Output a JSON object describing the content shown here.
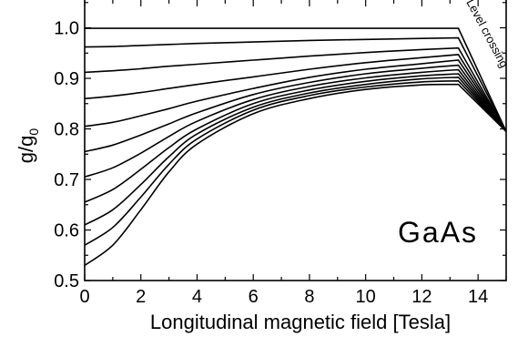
{
  "chart_data": {
    "type": "line",
    "xlabel": "Longitudinal magnetic field [Tesla]",
    "ylabel_main": "g/g",
    "ylabel_sub": "0",
    "xlim": [
      0,
      15
    ],
    "ylim": [
      0.5,
      1.05
    ],
    "x_ticks": [
      "0",
      "2",
      "4",
      "6",
      "8",
      "10",
      "12",
      "14"
    ],
    "y_ticks": [
      "0.5",
      "0.6",
      "0.7",
      "0.8",
      "0.9",
      "1.0"
    ],
    "grid": false,
    "legend": "none",
    "annotations": [
      "GaAs",
      "Level crossing"
    ],
    "series": [
      {
        "x": [
          0,
          1,
          2,
          3,
          4,
          6,
          8,
          10,
          12,
          13.3,
          15
        ],
        "y": [
          0.53,
          0.57,
          0.64,
          0.715,
          0.77,
          0.83,
          0.86,
          0.878,
          0.887,
          0.888,
          0.795
        ]
      },
      {
        "x": [
          0,
          1,
          2,
          3,
          4,
          6,
          8,
          10,
          12,
          13.3,
          15
        ],
        "y": [
          0.57,
          0.605,
          0.665,
          0.73,
          0.78,
          0.837,
          0.866,
          0.883,
          0.893,
          0.895,
          0.795
        ]
      },
      {
        "x": [
          0,
          1,
          2,
          3,
          4,
          6,
          8,
          10,
          12,
          13.3,
          15
        ],
        "y": [
          0.61,
          0.64,
          0.69,
          0.745,
          0.79,
          0.843,
          0.871,
          0.888,
          0.899,
          0.902,
          0.795
        ]
      },
      {
        "x": [
          0,
          1,
          2,
          3,
          4,
          6,
          8,
          10,
          12,
          13.3,
          15
        ],
        "y": [
          0.655,
          0.68,
          0.72,
          0.763,
          0.8,
          0.85,
          0.877,
          0.894,
          0.905,
          0.909,
          0.795
        ]
      },
      {
        "x": [
          0,
          1,
          2,
          3,
          4,
          6,
          8,
          10,
          12,
          13.3,
          15
        ],
        "y": [
          0.705,
          0.723,
          0.752,
          0.785,
          0.815,
          0.858,
          0.884,
          0.901,
          0.912,
          0.917,
          0.795
        ]
      },
      {
        "x": [
          0,
          1,
          2,
          3,
          4,
          6,
          8,
          10,
          12,
          13.3,
          15
        ],
        "y": [
          0.755,
          0.768,
          0.788,
          0.81,
          0.832,
          0.868,
          0.892,
          0.909,
          0.92,
          0.926,
          0.795
        ]
      },
      {
        "x": [
          0,
          1,
          2,
          3,
          4,
          6,
          8,
          10,
          12,
          13.3,
          15
        ],
        "y": [
          0.805,
          0.813,
          0.826,
          0.84,
          0.855,
          0.88,
          0.902,
          0.918,
          0.929,
          0.936,
          0.795
        ]
      },
      {
        "x": [
          0,
          1,
          2,
          3,
          4,
          6,
          8,
          10,
          12,
          13.3,
          15
        ],
        "y": [
          0.86,
          0.865,
          0.872,
          0.88,
          0.888,
          0.903,
          0.918,
          0.931,
          0.941,
          0.947,
          0.795
        ]
      },
      {
        "x": [
          0,
          1,
          2,
          3,
          4,
          6,
          8,
          10,
          12,
          13.3,
          15
        ],
        "y": [
          0.912,
          0.915,
          0.919,
          0.924,
          0.928,
          0.936,
          0.944,
          0.951,
          0.957,
          0.96,
          0.795
        ]
      },
      {
        "x": [
          0,
          1,
          2,
          3,
          4,
          6,
          8,
          10,
          12,
          13.3,
          15
        ],
        "y": [
          0.962,
          0.963,
          0.965,
          0.967,
          0.969,
          0.972,
          0.975,
          0.977,
          0.979,
          0.98,
          0.795
        ]
      },
      {
        "x": [
          0,
          1,
          2,
          3,
          4,
          6,
          8,
          10,
          12,
          13.3,
          15
        ],
        "y": [
          0.999,
          0.999,
          0.999,
          0.999,
          0.999,
          0.999,
          0.999,
          0.999,
          0.999,
          0.999,
          0.795
        ]
      }
    ]
  }
}
